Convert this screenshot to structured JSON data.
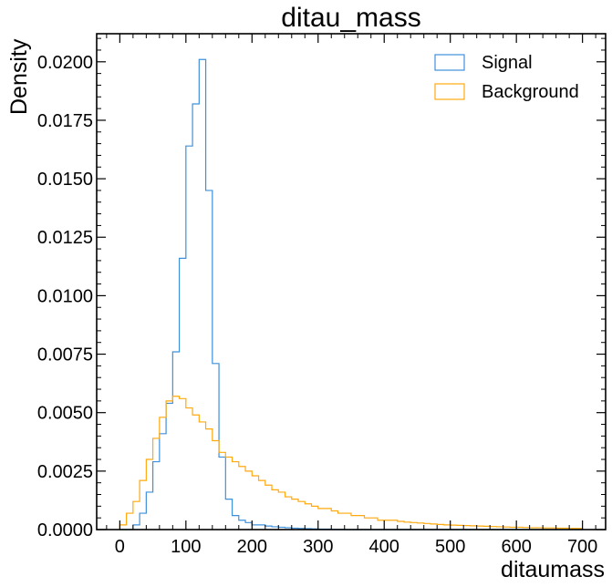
{
  "chart_data": {
    "type": "step-histogram",
    "title": "ditau_mass",
    "xlabel": "ditaumass",
    "ylabel": "Density",
    "xlim": [
      -35,
      735
    ],
    "ylim": [
      0,
      0.0212
    ],
    "xticks": [
      0,
      100,
      200,
      300,
      400,
      500,
      600,
      700
    ],
    "xtick_labels": [
      "0",
      "100",
      "200",
      "300",
      "400",
      "500",
      "600",
      "700"
    ],
    "yticks": [
      0,
      0.0025,
      0.005,
      0.0075,
      0.01,
      0.0125,
      0.015,
      0.0175,
      0.02
    ],
    "ytick_labels": [
      "0.0000",
      "0.0025",
      "0.0050",
      "0.0075",
      "0.0100",
      "0.0125",
      "0.0150",
      "0.0175",
      "0.0200"
    ],
    "grid": false,
    "legend_position": "top-right",
    "bin_edges": [
      0,
      10,
      20,
      30,
      40,
      50,
      60,
      70,
      80,
      90,
      100,
      110,
      120,
      130,
      140,
      150,
      160,
      170,
      180,
      190,
      200,
      210,
      220,
      230,
      240,
      250,
      260,
      270,
      280,
      290,
      300,
      310,
      320,
      330,
      340,
      350,
      360,
      370,
      380,
      390,
      400,
      410,
      420,
      430,
      440,
      450,
      460,
      470,
      480,
      490,
      500,
      510,
      520,
      530,
      540,
      550,
      560,
      570,
      580,
      590,
      600,
      610,
      620,
      630,
      640,
      650,
      660,
      670,
      680,
      690,
      700
    ],
    "series": [
      {
        "name": "Signal",
        "color": "#3f90da",
        "values": [
          0,
          0,
          0.0002,
          0.0007,
          0.0016,
          0.0029,
          0.0041,
          0.0054,
          0.0076,
          0.0116,
          0.0164,
          0.0182,
          0.0201,
          0.0145,
          0.0071,
          0.0031,
          0.0013,
          0.0006,
          0.0004,
          0.0003,
          0.0002,
          0.0002,
          0.00015,
          0.00012,
          0.0001,
          8e-05,
          6e-05,
          5e-05,
          4e-05,
          3e-05,
          2e-05,
          2e-05,
          1e-05,
          1e-05,
          0,
          0,
          0,
          0,
          0,
          0,
          0,
          0,
          0,
          0,
          0,
          0,
          0,
          0,
          0,
          0,
          0,
          0,
          0,
          0,
          0,
          0,
          0,
          0,
          0,
          0,
          0,
          0,
          0,
          0,
          0,
          0,
          0,
          0,
          0,
          0
        ]
      },
      {
        "name": "Background",
        "color": "#ffa90e",
        "values": [
          0.0002,
          0.0007,
          0.0012,
          0.0021,
          0.003,
          0.0039,
          0.0048,
          0.0055,
          0.0057,
          0.0056,
          0.0052,
          0.0049,
          0.0046,
          0.0043,
          0.0038,
          0.0033,
          0.0031,
          0.0029,
          0.0027,
          0.0025,
          0.0023,
          0.0021,
          0.0019,
          0.0017,
          0.0016,
          0.0014,
          0.0013,
          0.0012,
          0.0011,
          0.001,
          0.0009,
          0.0009,
          0.0008,
          0.0007,
          0.0007,
          0.0006,
          0.0006,
          0.0005,
          0.0005,
          0.0004,
          0.0004,
          0.0004,
          0.00035,
          0.00032,
          0.0003,
          0.00028,
          0.00026,
          0.00024,
          0.00022,
          0.0002,
          0.00019,
          0.00018,
          0.00017,
          0.00016,
          0.00015,
          0.00014,
          0.00013,
          0.00012,
          0.00011,
          0.0001,
          0.0001,
          9e-05,
          8e-05,
          8e-05,
          7e-05,
          7e-05,
          6e-05,
          6e-05,
          5e-05,
          5e-05
        ]
      }
    ]
  }
}
